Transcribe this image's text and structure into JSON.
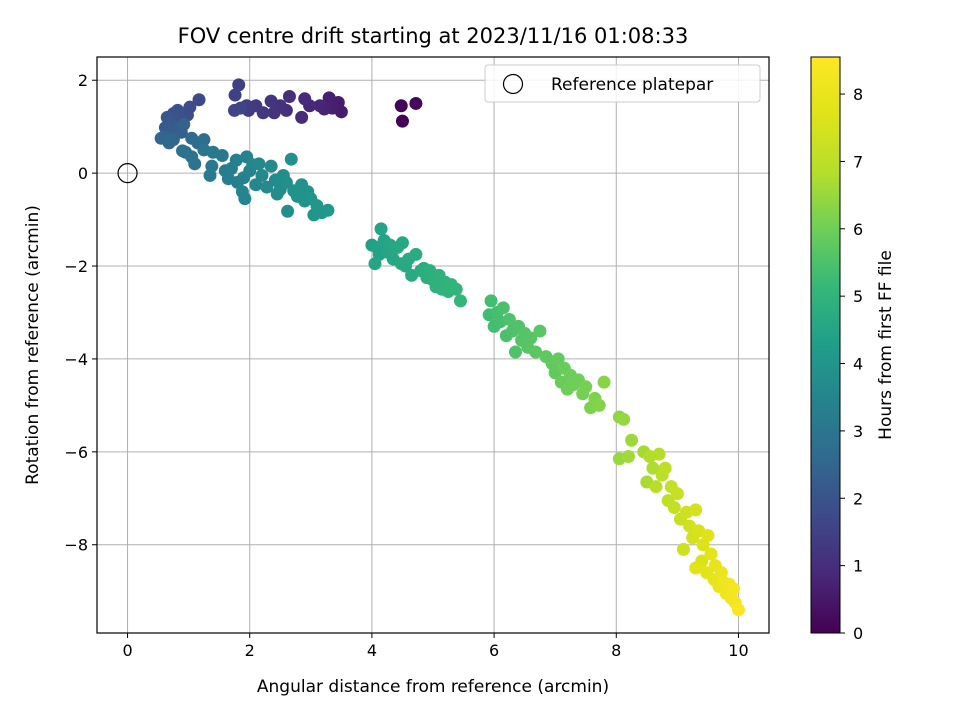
{
  "chart_data": {
    "type": "scatter",
    "title": "FOV centre drift starting at 2023/11/16 01:08:33",
    "xlabel": "Angular distance from reference (arcmin)",
    "ylabel": "Rotation from reference (arcmin)",
    "xlim": [
      -0.5,
      10.5
    ],
    "ylim": [
      -9.9,
      2.5
    ],
    "xticks": [
      "0",
      "2",
      "4",
      "6",
      "8",
      "10"
    ],
    "yticks": [
      "2",
      "0",
      "−2",
      "−4",
      "−6",
      "−8"
    ],
    "grid": true,
    "legend": {
      "position": "top-right",
      "label": "Reference platepar"
    },
    "reference_point": {
      "x": 0,
      "y": 0
    },
    "colorbar": {
      "label": "Hours from first FF file",
      "range": [
        0,
        8.55
      ],
      "ticks": [
        "0",
        "1",
        "2",
        "3",
        "4",
        "5",
        "6",
        "7",
        "8"
      ],
      "colormap": "viridis"
    },
    "series": [
      {
        "points": [
          {
            "x": 4.5,
            "y": 1.12,
            "h": 0.05
          },
          {
            "x": 4.48,
            "y": 1.45,
            "h": 0.1
          },
          {
            "x": 4.72,
            "y": 1.5,
            "h": 0.15
          },
          {
            "x": 3.5,
            "y": 1.32,
            "h": 0.55
          },
          {
            "x": 3.45,
            "y": 1.52,
            "h": 0.6
          },
          {
            "x": 3.35,
            "y": 1.4,
            "h": 0.65
          },
          {
            "x": 3.3,
            "y": 1.62,
            "h": 0.7
          },
          {
            "x": 3.22,
            "y": 1.38,
            "h": 0.75
          },
          {
            "x": 3.15,
            "y": 1.45,
            "h": 0.8
          },
          {
            "x": 2.98,
            "y": 1.45,
            "h": 0.85
          },
          {
            "x": 2.9,
            "y": 1.6,
            "h": 0.9
          },
          {
            "x": 2.85,
            "y": 1.2,
            "h": 0.95
          },
          {
            "x": 2.65,
            "y": 1.65,
            "h": 1.0
          },
          {
            "x": 2.6,
            "y": 1.35,
            "h": 1.05
          },
          {
            "x": 2.5,
            "y": 1.45,
            "h": 1.1
          },
          {
            "x": 2.4,
            "y": 1.3,
            "h": 1.15
          },
          {
            "x": 2.35,
            "y": 1.55,
            "h": 1.2
          },
          {
            "x": 2.22,
            "y": 1.3,
            "h": 1.25
          },
          {
            "x": 2.1,
            "y": 1.45,
            "h": 1.3
          },
          {
            "x": 1.98,
            "y": 1.35,
            "h": 1.35
          },
          {
            "x": 1.95,
            "y": 1.45,
            "h": 1.4
          },
          {
            "x": 1.82,
            "y": 1.9,
            "h": 1.45
          },
          {
            "x": 1.76,
            "y": 1.68,
            "h": 1.5
          },
          {
            "x": 1.85,
            "y": 1.4,
            "h": 1.55
          },
          {
            "x": 1.75,
            "y": 1.35,
            "h": 1.6
          },
          {
            "x": 1.17,
            "y": 1.58,
            "h": 1.75
          },
          {
            "x": 1.02,
            "y": 1.42,
            "h": 1.8
          },
          {
            "x": 0.98,
            "y": 1.25,
            "h": 1.85
          },
          {
            "x": 0.9,
            "y": 1.15,
            "h": 1.9
          },
          {
            "x": 0.82,
            "y": 1.35,
            "h": 1.95
          },
          {
            "x": 0.75,
            "y": 1.28,
            "h": 2.0
          },
          {
            "x": 0.7,
            "y": 1.12,
            "h": 2.05
          },
          {
            "x": 0.65,
            "y": 1.2,
            "h": 2.1
          },
          {
            "x": 0.72,
            "y": 1.05,
            "h": 2.15
          },
          {
            "x": 0.62,
            "y": 0.98,
            "h": 2.2
          },
          {
            "x": 0.82,
            "y": 0.95,
            "h": 2.25
          },
          {
            "x": 0.7,
            "y": 0.85,
            "h": 2.3
          },
          {
            "x": 0.88,
            "y": 0.88,
            "h": 2.35
          },
          {
            "x": 0.92,
            "y": 1.05,
            "h": 2.4
          },
          {
            "x": 0.6,
            "y": 0.78,
            "h": 2.45
          },
          {
            "x": 0.55,
            "y": 0.75,
            "h": 2.5
          },
          {
            "x": 0.75,
            "y": 0.72,
            "h": 2.55
          },
          {
            "x": 0.68,
            "y": 0.65,
            "h": 2.6
          },
          {
            "x": 1.05,
            "y": 0.75,
            "h": 2.65
          },
          {
            "x": 1.15,
            "y": 0.65,
            "h": 2.7
          },
          {
            "x": 1.25,
            "y": 0.72,
            "h": 2.75
          },
          {
            "x": 0.95,
            "y": 0.45,
            "h": 2.8
          },
          {
            "x": 0.9,
            "y": 0.48,
            "h": 2.85
          },
          {
            "x": 1.05,
            "y": 0.35,
            "h": 2.9
          },
          {
            "x": 1.1,
            "y": 0.2,
            "h": 2.95
          },
          {
            "x": 1.25,
            "y": 0.5,
            "h": 3.0
          },
          {
            "x": 1.4,
            "y": 0.45,
            "h": 3.05
          },
          {
            "x": 1.55,
            "y": 0.38,
            "h": 3.1
          },
          {
            "x": 1.38,
            "y": 0.15,
            "h": 3.1
          },
          {
            "x": 1.35,
            "y": -0.05,
            "h": 3.15
          },
          {
            "x": 1.6,
            "y": 0.05,
            "h": 3.2
          },
          {
            "x": 1.65,
            "y": -0.12,
            "h": 3.25
          },
          {
            "x": 1.7,
            "y": 0.1,
            "h": 3.3
          },
          {
            "x": 1.78,
            "y": 0.28,
            "h": 3.35
          },
          {
            "x": 1.8,
            "y": -0.2,
            "h": 3.4
          },
          {
            "x": 1.9,
            "y": -0.1,
            "h": 3.4
          },
          {
            "x": 1.95,
            "y": 0.35,
            "h": 3.45
          },
          {
            "x": 2.0,
            "y": 0.05,
            "h": 3.45
          },
          {
            "x": 1.88,
            "y": -0.4,
            "h": 3.5
          },
          {
            "x": 1.92,
            "y": -0.55,
            "h": 3.5
          },
          {
            "x": 2.1,
            "y": -0.25,
            "h": 3.55
          },
          {
            "x": 2.05,
            "y": 0.18,
            "h": 3.55
          },
          {
            "x": 2.15,
            "y": 0.2,
            "h": 3.6
          },
          {
            "x": 2.2,
            "y": -0.05,
            "h": 3.6
          },
          {
            "x": 2.28,
            "y": -0.3,
            "h": 3.65
          },
          {
            "x": 2.35,
            "y": 0.15,
            "h": 3.65
          },
          {
            "x": 2.42,
            "y": -0.15,
            "h": 3.7
          },
          {
            "x": 2.5,
            "y": -0.35,
            "h": 3.7
          },
          {
            "x": 2.55,
            "y": -0.05,
            "h": 3.75
          },
          {
            "x": 2.45,
            "y": -0.45,
            "h": 3.75
          },
          {
            "x": 2.6,
            "y": -0.2,
            "h": 3.8
          },
          {
            "x": 2.62,
            "y": -0.82,
            "h": 3.8
          },
          {
            "x": 2.68,
            "y": 0.3,
            "h": 3.85
          },
          {
            "x": 2.72,
            "y": -0.38,
            "h": 3.85
          },
          {
            "x": 2.78,
            "y": -0.5,
            "h": 3.9
          },
          {
            "x": 2.85,
            "y": -0.25,
            "h": 3.9
          },
          {
            "x": 2.9,
            "y": -0.6,
            "h": 3.95
          },
          {
            "x": 2.95,
            "y": -0.4,
            "h": 3.95
          },
          {
            "x": 3.0,
            "y": -0.55,
            "h": 4.0
          },
          {
            "x": 3.05,
            "y": -0.9,
            "h": 4.0
          },
          {
            "x": 3.1,
            "y": -0.7,
            "h": 4.05
          },
          {
            "x": 3.18,
            "y": -0.85,
            "h": 4.05
          },
          {
            "x": 3.28,
            "y": -0.8,
            "h": 4.1
          },
          {
            "x": 4.0,
            "y": -1.55,
            "h": 4.35
          },
          {
            "x": 4.08,
            "y": -1.6,
            "h": 4.4
          },
          {
            "x": 4.12,
            "y": -1.75,
            "h": 4.4
          },
          {
            "x": 4.15,
            "y": -1.2,
            "h": 4.45
          },
          {
            "x": 4.2,
            "y": -1.45,
            "h": 4.45
          },
          {
            "x": 4.25,
            "y": -1.7,
            "h": 4.5
          },
          {
            "x": 4.05,
            "y": -1.95,
            "h": 4.5
          },
          {
            "x": 4.3,
            "y": -1.55,
            "h": 4.55
          },
          {
            "x": 4.35,
            "y": -1.85,
            "h": 4.55
          },
          {
            "x": 4.42,
            "y": -1.6,
            "h": 4.6
          },
          {
            "x": 4.5,
            "y": -1.5,
            "h": 4.6
          },
          {
            "x": 4.48,
            "y": -1.95,
            "h": 4.65
          },
          {
            "x": 4.55,
            "y": -2.0,
            "h": 4.65
          },
          {
            "x": 4.6,
            "y": -1.85,
            "h": 4.7
          },
          {
            "x": 4.65,
            "y": -2.2,
            "h": 4.7
          },
          {
            "x": 4.72,
            "y": -1.75,
            "h": 4.75
          },
          {
            "x": 4.8,
            "y": -2.1,
            "h": 4.75
          },
          {
            "x": 4.85,
            "y": -2.05,
            "h": 4.8
          },
          {
            "x": 4.9,
            "y": -2.25,
            "h": 4.8
          },
          {
            "x": 4.95,
            "y": -2.1,
            "h": 4.85
          },
          {
            "x": 5.0,
            "y": -2.3,
            "h": 4.85
          },
          {
            "x": 5.05,
            "y": -2.45,
            "h": 4.9
          },
          {
            "x": 5.1,
            "y": -2.2,
            "h": 4.9
          },
          {
            "x": 5.15,
            "y": -2.5,
            "h": 4.95
          },
          {
            "x": 5.2,
            "y": -2.35,
            "h": 4.95
          },
          {
            "x": 5.25,
            "y": -2.55,
            "h": 5.0
          },
          {
            "x": 5.3,
            "y": -2.4,
            "h": 5.0
          },
          {
            "x": 5.38,
            "y": -2.5,
            "h": 5.05
          },
          {
            "x": 5.45,
            "y": -2.75,
            "h": 5.1
          },
          {
            "x": 5.92,
            "y": -3.05,
            "h": 5.3
          },
          {
            "x": 5.95,
            "y": -2.75,
            "h": 5.35
          },
          {
            "x": 6.0,
            "y": -3.3,
            "h": 5.35
          },
          {
            "x": 6.05,
            "y": -3.0,
            "h": 5.4
          },
          {
            "x": 6.1,
            "y": -3.2,
            "h": 5.4
          },
          {
            "x": 6.15,
            "y": -2.9,
            "h": 5.45
          },
          {
            "x": 6.2,
            "y": -3.5,
            "h": 5.45
          },
          {
            "x": 6.25,
            "y": -3.15,
            "h": 5.5
          },
          {
            "x": 6.3,
            "y": -3.4,
            "h": 5.5
          },
          {
            "x": 6.35,
            "y": -3.85,
            "h": 5.55
          },
          {
            "x": 6.4,
            "y": -3.3,
            "h": 5.55
          },
          {
            "x": 6.45,
            "y": -3.6,
            "h": 5.6
          },
          {
            "x": 6.5,
            "y": -3.45,
            "h": 5.6
          },
          {
            "x": 6.55,
            "y": -3.75,
            "h": 5.65
          },
          {
            "x": 6.6,
            "y": -3.55,
            "h": 5.65
          },
          {
            "x": 6.68,
            "y": -3.85,
            "h": 5.7
          },
          {
            "x": 6.75,
            "y": -3.4,
            "h": 5.7
          },
          {
            "x": 6.85,
            "y": -3.95,
            "h": 5.75
          },
          {
            "x": 6.95,
            "y": -4.1,
            "h": 5.8
          },
          {
            "x": 7.0,
            "y": -4.3,
            "h": 5.8
          },
          {
            "x": 7.05,
            "y": -4.0,
            "h": 5.85
          },
          {
            "x": 7.1,
            "y": -4.5,
            "h": 5.9
          },
          {
            "x": 7.15,
            "y": -4.2,
            "h": 5.9
          },
          {
            "x": 7.2,
            "y": -4.65,
            "h": 5.95
          },
          {
            "x": 7.25,
            "y": -4.35,
            "h": 5.95
          },
          {
            "x": 7.3,
            "y": -4.55,
            "h": 6.0
          },
          {
            "x": 7.38,
            "y": -4.45,
            "h": 6.0
          },
          {
            "x": 7.45,
            "y": -4.75,
            "h": 6.05
          },
          {
            "x": 7.5,
            "y": -4.6,
            "h": 6.1
          },
          {
            "x": 7.58,
            "y": -5.05,
            "h": 6.15
          },
          {
            "x": 7.65,
            "y": -4.85,
            "h": 6.2
          },
          {
            "x": 7.72,
            "y": -5.0,
            "h": 6.25
          },
          {
            "x": 7.8,
            "y": -4.5,
            "h": 6.3
          },
          {
            "x": 8.05,
            "y": -5.25,
            "h": 6.4
          },
          {
            "x": 8.12,
            "y": -5.3,
            "h": 6.45
          },
          {
            "x": 8.05,
            "y": -6.15,
            "h": 6.5
          },
          {
            "x": 8.25,
            "y": -5.75,
            "h": 6.55
          },
          {
            "x": 8.2,
            "y": -6.1,
            "h": 6.6
          },
          {
            "x": 8.45,
            "y": -6.0,
            "h": 6.65
          },
          {
            "x": 8.5,
            "y": -6.65,
            "h": 6.7
          },
          {
            "x": 8.6,
            "y": -6.35,
            "h": 6.75
          },
          {
            "x": 8.55,
            "y": -6.1,
            "h": 6.8
          },
          {
            "x": 8.7,
            "y": -6.05,
            "h": 6.85
          },
          {
            "x": 8.65,
            "y": -6.75,
            "h": 6.9
          },
          {
            "x": 8.75,
            "y": -6.5,
            "h": 6.95
          },
          {
            "x": 8.8,
            "y": -6.35,
            "h": 7.0
          },
          {
            "x": 8.85,
            "y": -7.05,
            "h": 7.05
          },
          {
            "x": 8.9,
            "y": -6.75,
            "h": 7.1
          },
          {
            "x": 8.95,
            "y": -7.2,
            "h": 7.15
          },
          {
            "x": 9.0,
            "y": -6.9,
            "h": 7.2
          },
          {
            "x": 9.05,
            "y": -7.45,
            "h": 7.25
          },
          {
            "x": 9.1,
            "y": -8.1,
            "h": 7.3
          },
          {
            "x": 9.15,
            "y": -7.3,
            "h": 7.35
          },
          {
            "x": 9.2,
            "y": -7.6,
            "h": 7.4
          },
          {
            "x": 9.25,
            "y": -7.85,
            "h": 7.45
          },
          {
            "x": 9.3,
            "y": -7.25,
            "h": 7.5
          },
          {
            "x": 9.35,
            "y": -7.7,
            "h": 7.55
          },
          {
            "x": 9.4,
            "y": -8.35,
            "h": 7.6
          },
          {
            "x": 9.42,
            "y": -8.0,
            "h": 7.65
          },
          {
            "x": 9.5,
            "y": -7.8,
            "h": 7.7
          },
          {
            "x": 9.3,
            "y": -8.5,
            "h": 7.75
          },
          {
            "x": 9.48,
            "y": -8.6,
            "h": 7.8
          },
          {
            "x": 9.55,
            "y": -8.2,
            "h": 7.85
          },
          {
            "x": 9.6,
            "y": -8.75,
            "h": 7.9
          },
          {
            "x": 9.62,
            "y": -8.45,
            "h": 7.95
          },
          {
            "x": 9.68,
            "y": -8.9,
            "h": 8.0
          },
          {
            "x": 9.72,
            "y": -8.6,
            "h": 8.05
          },
          {
            "x": 9.75,
            "y": -8.8,
            "h": 8.1
          },
          {
            "x": 9.8,
            "y": -9.05,
            "h": 8.15
          },
          {
            "x": 9.85,
            "y": -8.85,
            "h": 8.2
          },
          {
            "x": 9.88,
            "y": -9.15,
            "h": 8.25
          },
          {
            "x": 9.92,
            "y": -8.95,
            "h": 8.3
          },
          {
            "x": 9.95,
            "y": -9.25,
            "h": 8.35
          },
          {
            "x": 10.0,
            "y": -9.4,
            "h": 8.45
          }
        ]
      }
    ]
  }
}
